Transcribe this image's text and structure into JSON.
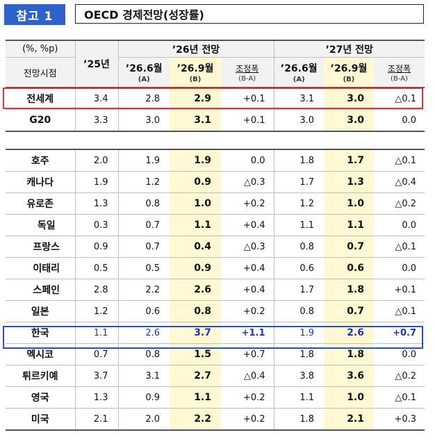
{
  "header": {
    "badge": "참고 1",
    "title": "OECD 경제전망(성장률)"
  },
  "table": {
    "unit_label": "(%, %p)",
    "period_label": "전망시점",
    "col_25": "’25년",
    "group_26": "’26년 전망",
    "group_27": "’27년 전망",
    "sub_a": "’26.6월",
    "sub_a_note": "(A)",
    "sub_b": "’26.9월",
    "sub_b_note": "(B)",
    "sub_adj": "조정폭",
    "sub_adj_note": "(B-A)",
    "rows": [
      {
        "name": "전세계",
        "y25": "3.4",
        "a26": "2.8",
        "b26": "2.9",
        "d26": "+0.1",
        "a27": "3.1",
        "b27": "3.0",
        "d27": "△0.1"
      },
      {
        "name": "G20",
        "y25": "3.3",
        "a26": "3.0",
        "b26": "3.1",
        "d26": "+0.1",
        "a27": "3.0",
        "b27": "3.0",
        "d27": "0.0"
      },
      {
        "name": "호주",
        "y25": "2.0",
        "a26": "1.9",
        "b26": "1.9",
        "d26": "0.0",
        "a27": "1.8",
        "b27": "1.7",
        "d27": "△0.1"
      },
      {
        "name": "캐나다",
        "y25": "1.9",
        "a26": "1.2",
        "b26": "0.9",
        "d26": "△0.3",
        "a27": "1.7",
        "b27": "1.3",
        "d27": "△0.4"
      },
      {
        "name": "유로존",
        "y25": "1.3",
        "a26": "0.8",
        "b26": "1.0",
        "d26": "+0.2",
        "a27": "1.2",
        "b27": "1.0",
        "d27": "△0.2"
      },
      {
        "name": "독일",
        "y25": "0.3",
        "a26": "0.7",
        "b26": "1.1",
        "d26": "+0.4",
        "a27": "1.1",
        "b27": "1.1",
        "d27": "0.0"
      },
      {
        "name": "프랑스",
        "y25": "0.9",
        "a26": "0.7",
        "b26": "0.4",
        "d26": "△0.3",
        "a27": "0.8",
        "b27": "0.7",
        "d27": "△0.1"
      },
      {
        "name": "이태리",
        "y25": "0.5",
        "a26": "0.5",
        "b26": "0.9",
        "d26": "+0.4",
        "a27": "0.6",
        "b27": "0.6",
        "d27": "0.0"
      },
      {
        "name": "스페인",
        "y25": "2.8",
        "a26": "2.2",
        "b26": "2.6",
        "d26": "+0.4",
        "a27": "1.7",
        "b27": "1.8",
        "d27": "+0.1"
      },
      {
        "name": "일본",
        "y25": "1.2",
        "a26": "0.6",
        "b26": "0.8",
        "d26": "+0.2",
        "a27": "0.8",
        "b27": "0.7",
        "d27": "△0.1"
      },
      {
        "name": "한국",
        "y25": "1.1",
        "a26": "2.6",
        "b26": "3.7",
        "d26": "+1.1",
        "a27": "1.9",
        "b27": "2.6",
        "d27": "+0.7"
      },
      {
        "name": "멕시코",
        "y25": "0.7",
        "a26": "0.8",
        "b26": "1.5",
        "d26": "+0.7",
        "a27": "1.8",
        "b27": "1.8",
        "d27": "0.0"
      },
      {
        "name": "튀르키예",
        "y25": "3.7",
        "a26": "3.1",
        "b26": "2.7",
        "d26": "△0.4",
        "a27": "3.8",
        "b27": "3.6",
        "d27": "△0.2"
      },
      {
        "name": "영국",
        "y25": "1.3",
        "a26": "0.9",
        "b26": "1.1",
        "d26": "+0.2",
        "a27": "1.1",
        "b27": "1.0",
        "d27": "△0.1"
      },
      {
        "name": "미국",
        "y25": "2.1",
        "a26": "2.0",
        "b26": "2.2",
        "d26": "+0.2",
        "a27": "1.8",
        "b27": "2.1",
        "d27": "+0.3"
      }
    ]
  },
  "colors": {
    "badge_bg": "#2f62c9",
    "highlight_col": "#fff8d2",
    "world_frame": "#d8343a",
    "korea_frame": "#2b4fb3",
    "korea_text": "#1e3aa8"
  }
}
